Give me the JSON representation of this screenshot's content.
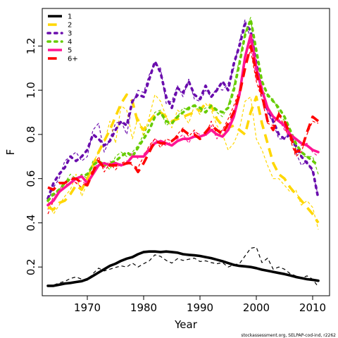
{
  "caption": "stockassessment.org, SELPAP-cod-ind, r2262",
  "chart_data": {
    "type": "line",
    "xlabel": "Year",
    "ylabel": "F",
    "xlim": [
      1962,
      2013
    ],
    "ylim": [
      0.07,
      1.37
    ],
    "xticks": [
      1970,
      1980,
      1990,
      2000,
      2010
    ],
    "yticks": [
      0.2,
      0.4,
      0.6,
      0.8,
      1.0,
      1.2
    ],
    "legend_position": "top-left",
    "series": [
      {
        "name": "1",
        "color": "#000000",
        "dash": "solid",
        "x": [
          1963,
          1964,
          1965,
          1966,
          1967,
          1968,
          1969,
          1970,
          1971,
          1972,
          1973,
          1974,
          1975,
          1976,
          1977,
          1978,
          1979,
          1980,
          1981,
          1982,
          1983,
          1984,
          1985,
          1986,
          1987,
          1988,
          1989,
          1990,
          1991,
          1992,
          1993,
          1994,
          1995,
          1996,
          1997,
          1998,
          1999,
          2000,
          2001,
          2002,
          2003,
          2004,
          2005,
          2006,
          2007,
          2008,
          2009,
          2010,
          2011
        ],
        "fitted": [
          0.115,
          0.115,
          0.12,
          0.125,
          0.128,
          0.132,
          0.136,
          0.145,
          0.16,
          0.175,
          0.19,
          0.205,
          0.215,
          0.228,
          0.238,
          0.245,
          0.258,
          0.268,
          0.27,
          0.27,
          0.268,
          0.27,
          0.268,
          0.265,
          0.258,
          0.255,
          0.253,
          0.25,
          0.245,
          0.24,
          0.233,
          0.226,
          0.218,
          0.21,
          0.205,
          0.203,
          0.2,
          0.195,
          0.188,
          0.183,
          0.178,
          0.173,
          0.168,
          0.162,
          0.155,
          0.15,
          0.145,
          0.142,
          0.138
        ],
        "observed": [
          0.115,
          0.118,
          0.128,
          0.135,
          0.148,
          0.155,
          0.145,
          0.14,
          0.17,
          0.195,
          0.182,
          0.19,
          0.198,
          0.205,
          0.2,
          0.218,
          0.2,
          0.215,
          0.228,
          0.255,
          0.248,
          0.23,
          0.218,
          0.238,
          0.23,
          0.235,
          0.24,
          0.225,
          0.228,
          0.22,
          0.215,
          0.22,
          0.2,
          0.21,
          0.215,
          0.25,
          0.285,
          0.29,
          0.22,
          0.24,
          0.19,
          0.2,
          0.19,
          0.17,
          0.16,
          0.15,
          0.16,
          0.145,
          0.11
        ]
      },
      {
        "name": "2",
        "color": "#FFD700",
        "dash": "dashed",
        "x": [
          1963,
          1964,
          1965,
          1966,
          1967,
          1968,
          1969,
          1970,
          1971,
          1972,
          1973,
          1974,
          1975,
          1976,
          1977,
          1978,
          1979,
          1980,
          1981,
          1982,
          1983,
          1984,
          1985,
          1986,
          1987,
          1988,
          1989,
          1990,
          1991,
          1992,
          1993,
          1994,
          1995,
          1996,
          1997,
          1998,
          1999,
          2000,
          2001,
          2002,
          2003,
          2004,
          2005,
          2006,
          2007,
          2008,
          2009,
          2010,
          2011
        ],
        "fitted": [
          0.47,
          0.46,
          0.49,
          0.5,
          0.53,
          0.57,
          0.55,
          0.6,
          0.66,
          0.72,
          0.77,
          0.82,
          0.88,
          0.94,
          0.98,
          0.95,
          0.85,
          0.82,
          0.86,
          0.89,
          0.9,
          0.88,
          0.86,
          0.87,
          0.88,
          0.89,
          0.9,
          0.91,
          0.94,
          0.93,
          0.87,
          0.84,
          0.83,
          0.84,
          0.82,
          0.8,
          0.9,
          0.97,
          0.85,
          0.76,
          0.67,
          0.62,
          0.6,
          0.56,
          0.53,
          0.5,
          0.47,
          0.44,
          0.4
        ],
        "observed": [
          0.5,
          0.44,
          0.48,
          0.52,
          0.55,
          0.62,
          0.52,
          0.58,
          0.67,
          0.72,
          0.76,
          0.86,
          0.76,
          0.93,
          0.91,
          0.78,
          0.88,
          0.79,
          0.88,
          0.98,
          0.95,
          0.88,
          0.83,
          0.91,
          0.89,
          0.85,
          0.93,
          0.89,
          0.94,
          0.91,
          0.84,
          0.8,
          0.73,
          0.76,
          0.82,
          0.95,
          0.97,
          0.78,
          0.73,
          0.66,
          0.6,
          0.6,
          0.57,
          0.54,
          0.55,
          0.48,
          0.5,
          0.47,
          0.37
        ]
      },
      {
        "name": "3",
        "color": "#6A0DAD",
        "dash": "dotted",
        "x": [
          1963,
          1964,
          1965,
          1966,
          1967,
          1968,
          1969,
          1970,
          1971,
          1972,
          1973,
          1974,
          1975,
          1976,
          1977,
          1978,
          1979,
          1980,
          1981,
          1982,
          1983,
          1984,
          1985,
          1986,
          1987,
          1988,
          1989,
          1990,
          1991,
          1992,
          1993,
          1994,
          1995,
          1996,
          1997,
          1998,
          1999,
          2000,
          2001,
          2002,
          2003,
          2004,
          2005,
          2006,
          2007,
          2008,
          2009,
          2010,
          2011
        ],
        "fitted": [
          0.51,
          0.58,
          0.62,
          0.65,
          0.7,
          0.68,
          0.7,
          0.73,
          0.8,
          0.78,
          0.75,
          0.77,
          0.82,
          0.86,
          0.84,
          0.95,
          0.98,
          0.97,
          1.05,
          1.13,
          1.08,
          0.97,
          0.92,
          1.01,
          0.99,
          1.04,
          0.98,
          0.96,
          1.02,
          0.97,
          1.0,
          1.04,
          1.0,
          1.12,
          1.2,
          1.3,
          1.27,
          1.12,
          1.0,
          0.92,
          0.86,
          0.8,
          0.78,
          0.8,
          0.75,
          0.7,
          0.67,
          0.64,
          0.51
        ],
        "observed": [
          0.5,
          0.56,
          0.6,
          0.68,
          0.7,
          0.72,
          0.68,
          0.7,
          0.82,
          0.85,
          0.72,
          0.78,
          0.85,
          0.86,
          0.8,
          0.94,
          1.0,
          0.99,
          1.07,
          1.12,
          1.1,
          0.94,
          0.95,
          1.02,
          0.97,
          1.05,
          0.96,
          0.95,
          1.0,
          0.97,
          1.01,
          1.0,
          1.03,
          1.1,
          1.22,
          1.32,
          1.23,
          1.1,
          0.96,
          0.9,
          0.85,
          0.78,
          0.78,
          0.82,
          0.72,
          0.66,
          0.68,
          0.63,
          0.52
        ]
      },
      {
        "name": "4",
        "color": "#66CC00",
        "dash": "dotted",
        "x": [
          1963,
          1964,
          1965,
          1966,
          1967,
          1968,
          1969,
          1970,
          1971,
          1972,
          1973,
          1974,
          1975,
          1976,
          1977,
          1978,
          1979,
          1980,
          1981,
          1982,
          1983,
          1984,
          1985,
          1986,
          1987,
          1988,
          1989,
          1990,
          1991,
          1992,
          1993,
          1994,
          1995,
          1996,
          1997,
          1998,
          1999,
          2000,
          2001,
          2002,
          2003,
          2004,
          2005,
          2006,
          2007,
          2008,
          2009,
          2010,
          2011
        ],
        "fitted": [
          0.5,
          0.53,
          0.55,
          0.58,
          0.6,
          0.6,
          0.61,
          0.62,
          0.66,
          0.68,
          0.66,
          0.67,
          0.68,
          0.7,
          0.72,
          0.7,
          0.74,
          0.78,
          0.82,
          0.88,
          0.9,
          0.86,
          0.85,
          0.88,
          0.9,
          0.92,
          0.93,
          0.92,
          0.9,
          0.93,
          0.91,
          0.9,
          0.92,
          1.0,
          1.12,
          1.25,
          1.32,
          1.18,
          1.04,
          0.98,
          0.95,
          0.92,
          0.88,
          0.82,
          0.76,
          0.72,
          0.7,
          0.68,
          0.66
        ],
        "observed": [
          0.48,
          0.55,
          0.53,
          0.58,
          0.62,
          0.6,
          0.62,
          0.6,
          0.68,
          0.68,
          0.67,
          0.64,
          0.7,
          0.72,
          0.7,
          0.72,
          0.75,
          0.8,
          0.85,
          0.9,
          0.91,
          0.84,
          0.86,
          0.88,
          0.92,
          0.91,
          0.94,
          0.9,
          0.92,
          0.92,
          0.9,
          0.88,
          0.93,
          1.02,
          1.14,
          1.26,
          1.33,
          1.12,
          1.0,
          0.97,
          0.96,
          0.9,
          0.86,
          0.8,
          0.74,
          0.7,
          0.7,
          0.7,
          0.62
        ]
      },
      {
        "name": "5",
        "color": "#FF1493",
        "dash": "solid",
        "x": [
          1963,
          1964,
          1965,
          1966,
          1967,
          1968,
          1969,
          1970,
          1971,
          1972,
          1973,
          1974,
          1975,
          1976,
          1977,
          1978,
          1979,
          1980,
          1981,
          1982,
          1983,
          1984,
          1985,
          1986,
          1987,
          1988,
          1989,
          1990,
          1991,
          1992,
          1993,
          1994,
          1995,
          1996,
          1997,
          1998,
          1999,
          2000,
          2001,
          2002,
          2003,
          2004,
          2005,
          2006,
          2007,
          2008,
          2009,
          2010,
          2011
        ],
        "fitted": [
          0.48,
          0.5,
          0.54,
          0.56,
          0.58,
          0.6,
          0.61,
          0.58,
          0.62,
          0.66,
          0.67,
          0.66,
          0.67,
          0.66,
          0.67,
          0.7,
          0.7,
          0.7,
          0.73,
          0.76,
          0.77,
          0.76,
          0.75,
          0.77,
          0.78,
          0.78,
          0.79,
          0.79,
          0.8,
          0.82,
          0.8,
          0.79,
          0.82,
          0.88,
          0.98,
          1.15,
          1.25,
          1.1,
          1.0,
          0.92,
          0.88,
          0.86,
          0.84,
          0.8,
          0.78,
          0.76,
          0.75,
          0.73,
          0.72
        ],
        "observed": [
          0.46,
          0.52,
          0.55,
          0.58,
          0.6,
          0.58,
          0.59,
          0.57,
          0.63,
          0.68,
          0.65,
          0.68,
          0.66,
          0.67,
          0.66,
          0.72,
          0.69,
          0.71,
          0.74,
          0.78,
          0.76,
          0.75,
          0.77,
          0.78,
          0.8,
          0.76,
          0.81,
          0.8,
          0.79,
          0.84,
          0.78,
          0.82,
          0.84,
          0.9,
          1.0,
          1.16,
          1.22,
          1.05,
          1.02,
          0.9,
          0.86,
          0.87,
          0.82,
          0.79,
          0.78,
          0.75,
          0.76,
          0.72,
          0.7
        ]
      },
      {
        "name": "6+",
        "color": "#FF0000",
        "dash": "dashed",
        "x": [
          1963,
          1964,
          1965,
          1966,
          1967,
          1968,
          1969,
          1970,
          1971,
          1972,
          1973,
          1974,
          1975,
          1976,
          1977,
          1978,
          1979,
          1980,
          1981,
          1982,
          1983,
          1984,
          1985,
          1986,
          1987,
          1988,
          1989,
          1990,
          1991,
          1992,
          1993,
          1994,
          1995,
          1996,
          1997,
          1998,
          1999,
          2000,
          2001,
          2002,
          2003,
          2004,
          2005,
          2006,
          2007,
          2008,
          2009,
          2010,
          2011
        ],
        "fitted": [
          0.56,
          0.55,
          0.58,
          0.58,
          0.6,
          0.6,
          0.58,
          0.57,
          0.63,
          0.68,
          0.65,
          0.66,
          0.66,
          0.66,
          0.67,
          0.67,
          0.63,
          0.67,
          0.72,
          0.77,
          0.76,
          0.76,
          0.77,
          0.79,
          0.82,
          0.8,
          0.8,
          0.78,
          0.81,
          0.84,
          0.82,
          0.8,
          0.85,
          0.9,
          0.98,
          1.1,
          1.2,
          1.08,
          0.98,
          0.86,
          0.82,
          0.89,
          0.86,
          0.8,
          0.72,
          0.73,
          0.81,
          0.88,
          0.86
        ],
        "observed": [
          0.44,
          0.5,
          0.55,
          0.56,
          0.6,
          0.58,
          0.56,
          0.6,
          0.64,
          0.7,
          0.63,
          0.67,
          0.64,
          0.67,
          0.68,
          0.66,
          0.65,
          0.7,
          0.75,
          0.78,
          0.74,
          0.78,
          0.77,
          0.8,
          0.83,
          0.79,
          0.82,
          0.79,
          0.8,
          0.86,
          0.8,
          0.82,
          0.87,
          0.93,
          1.0,
          1.12,
          1.18,
          1.04,
          0.96,
          0.85,
          0.84,
          0.9,
          0.83,
          0.78,
          0.7,
          0.72,
          0.8,
          0.86,
          0.85
        ]
      }
    ]
  }
}
